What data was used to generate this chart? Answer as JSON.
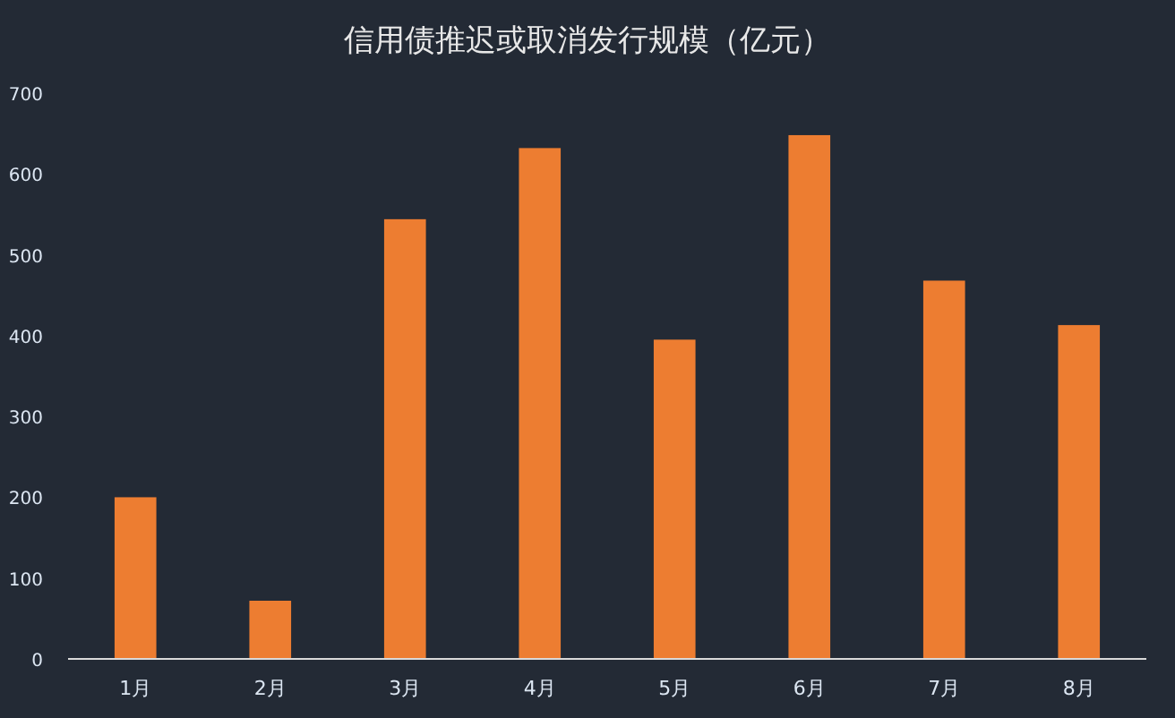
{
  "chart_data": {
    "type": "bar",
    "title": "信用债推迟或取消发行规模（亿元）",
    "categories": [
      "1月",
      "2月",
      "3月",
      "4月",
      "5月",
      "6月",
      "7月",
      "8月"
    ],
    "values": [
      200,
      72,
      544,
      632,
      395,
      648,
      468,
      413
    ],
    "color": "#ed7d31",
    "ylim": [
      0,
      700
    ],
    "yticks": [
      0,
      100,
      200,
      300,
      400,
      500,
      600,
      700
    ]
  }
}
